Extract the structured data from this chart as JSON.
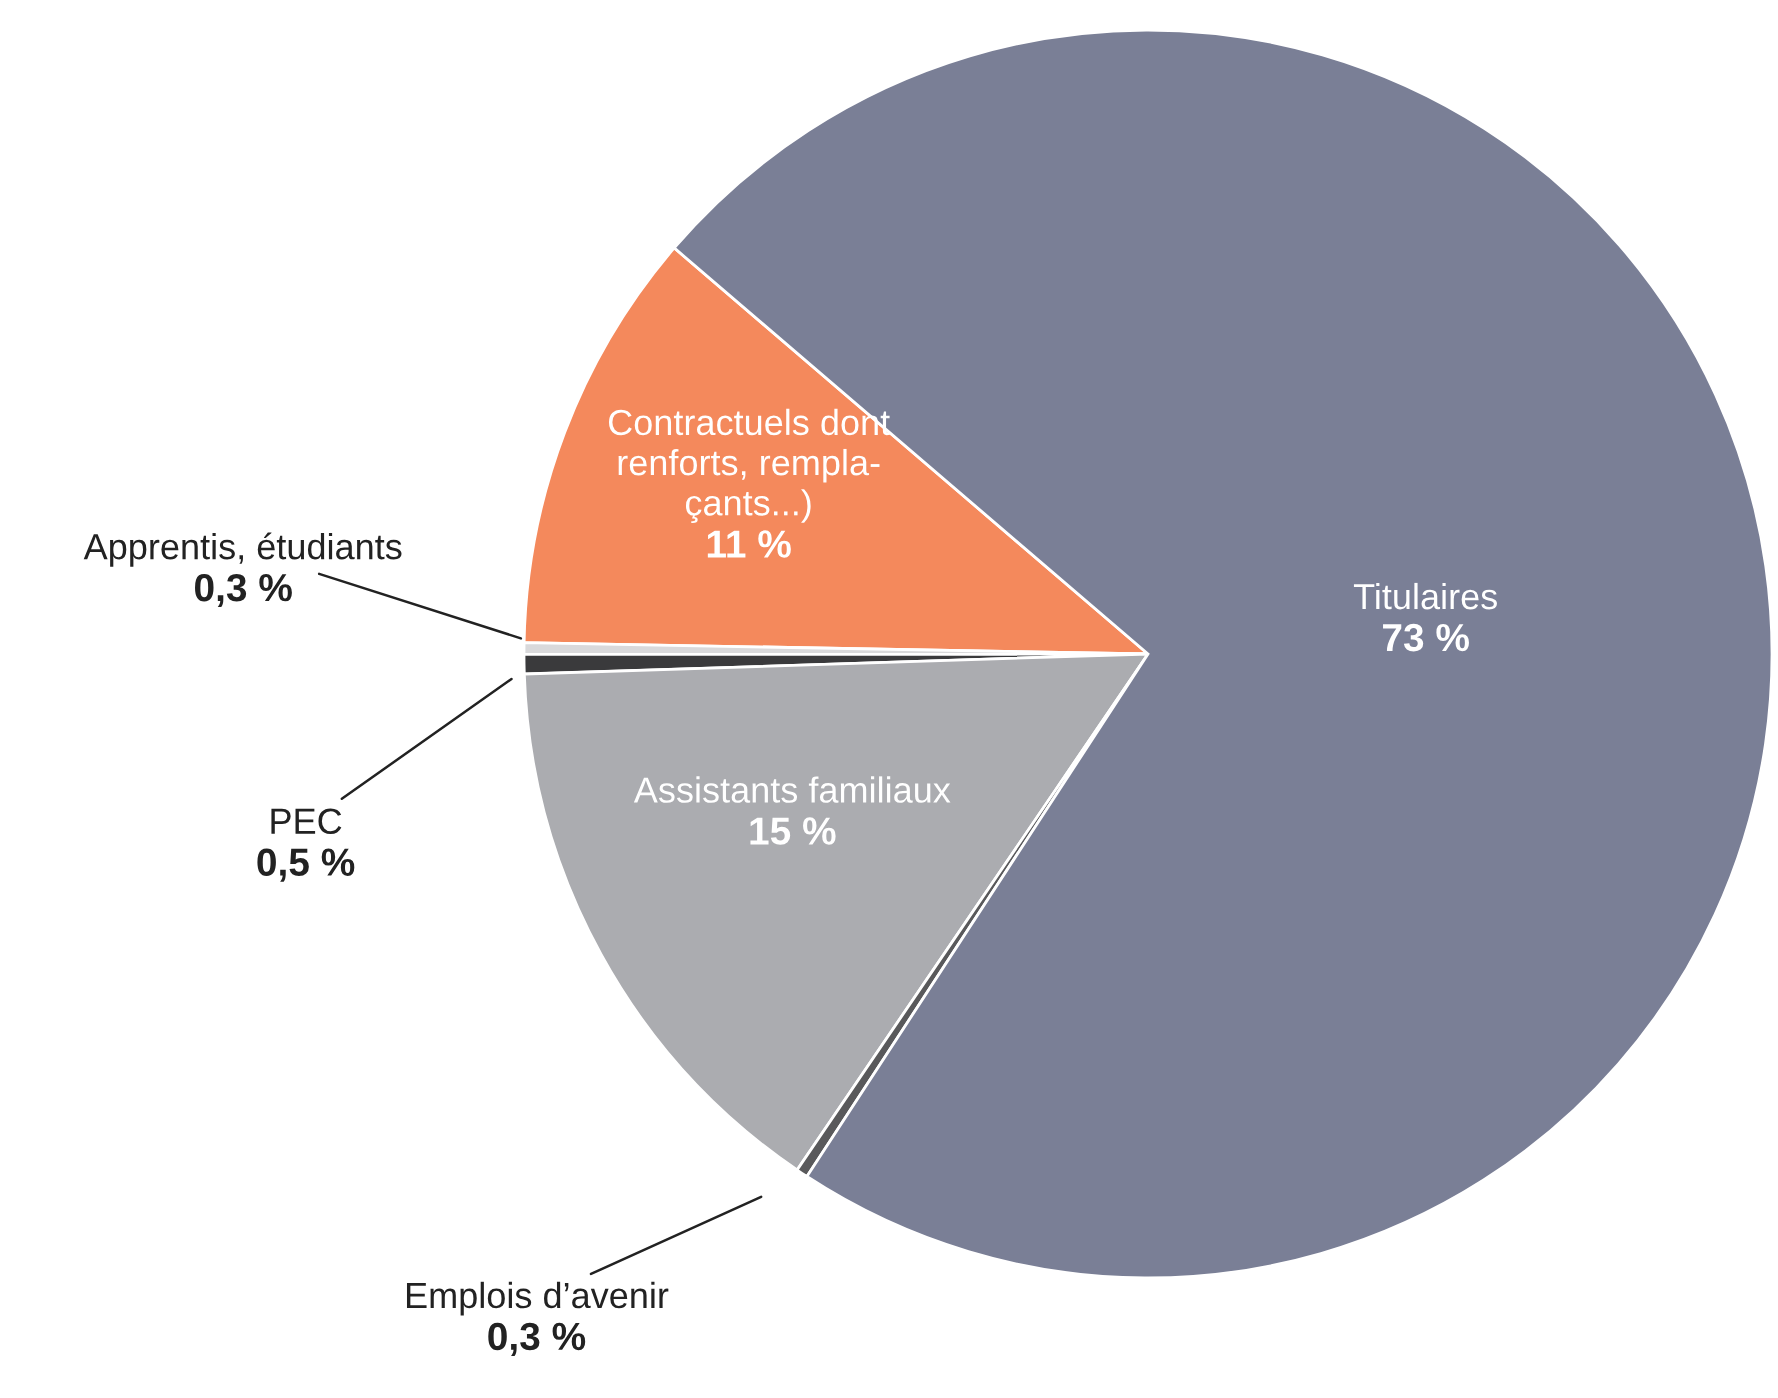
{
  "chart_data": {
    "type": "pie",
    "categories": [
      "Contractuels dont\nrenforts, rempla-\nçants...)",
      "Apprentis, étudiants",
      "PEC",
      "Assistants familiaux",
      "Emplois d’avenir",
      "Titulaires"
    ],
    "values": [
      11,
      0.3,
      0.5,
      15,
      0.3,
      73
    ],
    "value_labels": [
      "11 %",
      "0,3 %",
      "0,5 %",
      "15 %",
      "0,3 %",
      "73 %"
    ],
    "colors": [
      "#f4895c",
      "#d9d9db",
      "#3a3a3c",
      "#abacb0",
      "#59595b",
      "#7a7f96"
    ],
    "legend": false
  }
}
